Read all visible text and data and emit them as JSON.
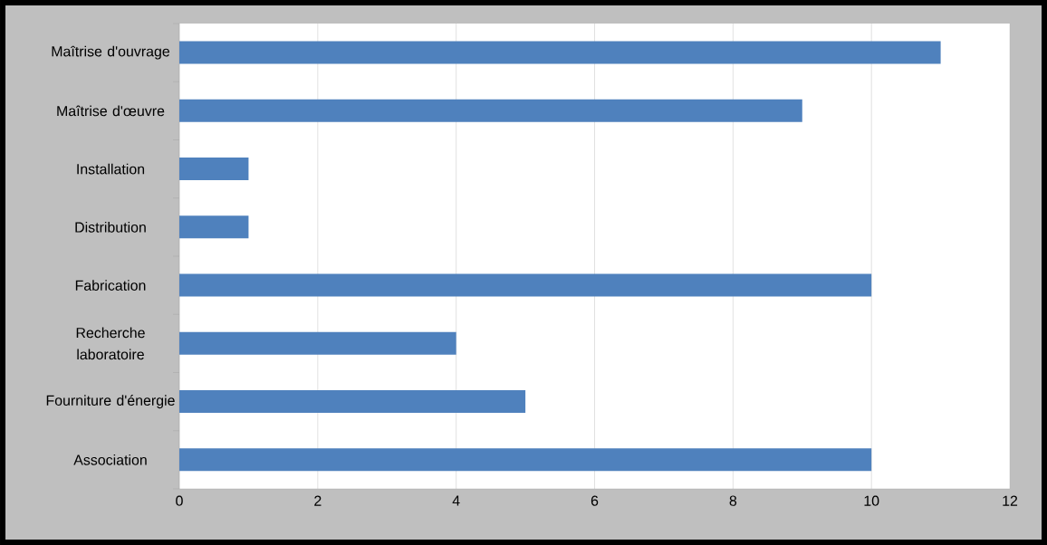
{
  "chart_data": {
    "type": "bar",
    "orientation": "horizontal",
    "categories": [
      "Maîtrise d'ouvrage",
      "Maîtrise d'œuvre",
      "Installation",
      "Distribution",
      "Fabrication",
      "Recherche laboratoire",
      "Fourniture d'énergie",
      "Association"
    ],
    "values": [
      11,
      9,
      1,
      1,
      10,
      4,
      5,
      10
    ],
    "color": "#4f81bd",
    "xlim": [
      0,
      12
    ],
    "xticks": [
      0,
      2,
      4,
      6,
      8,
      10,
      12
    ],
    "grid": "x"
  }
}
